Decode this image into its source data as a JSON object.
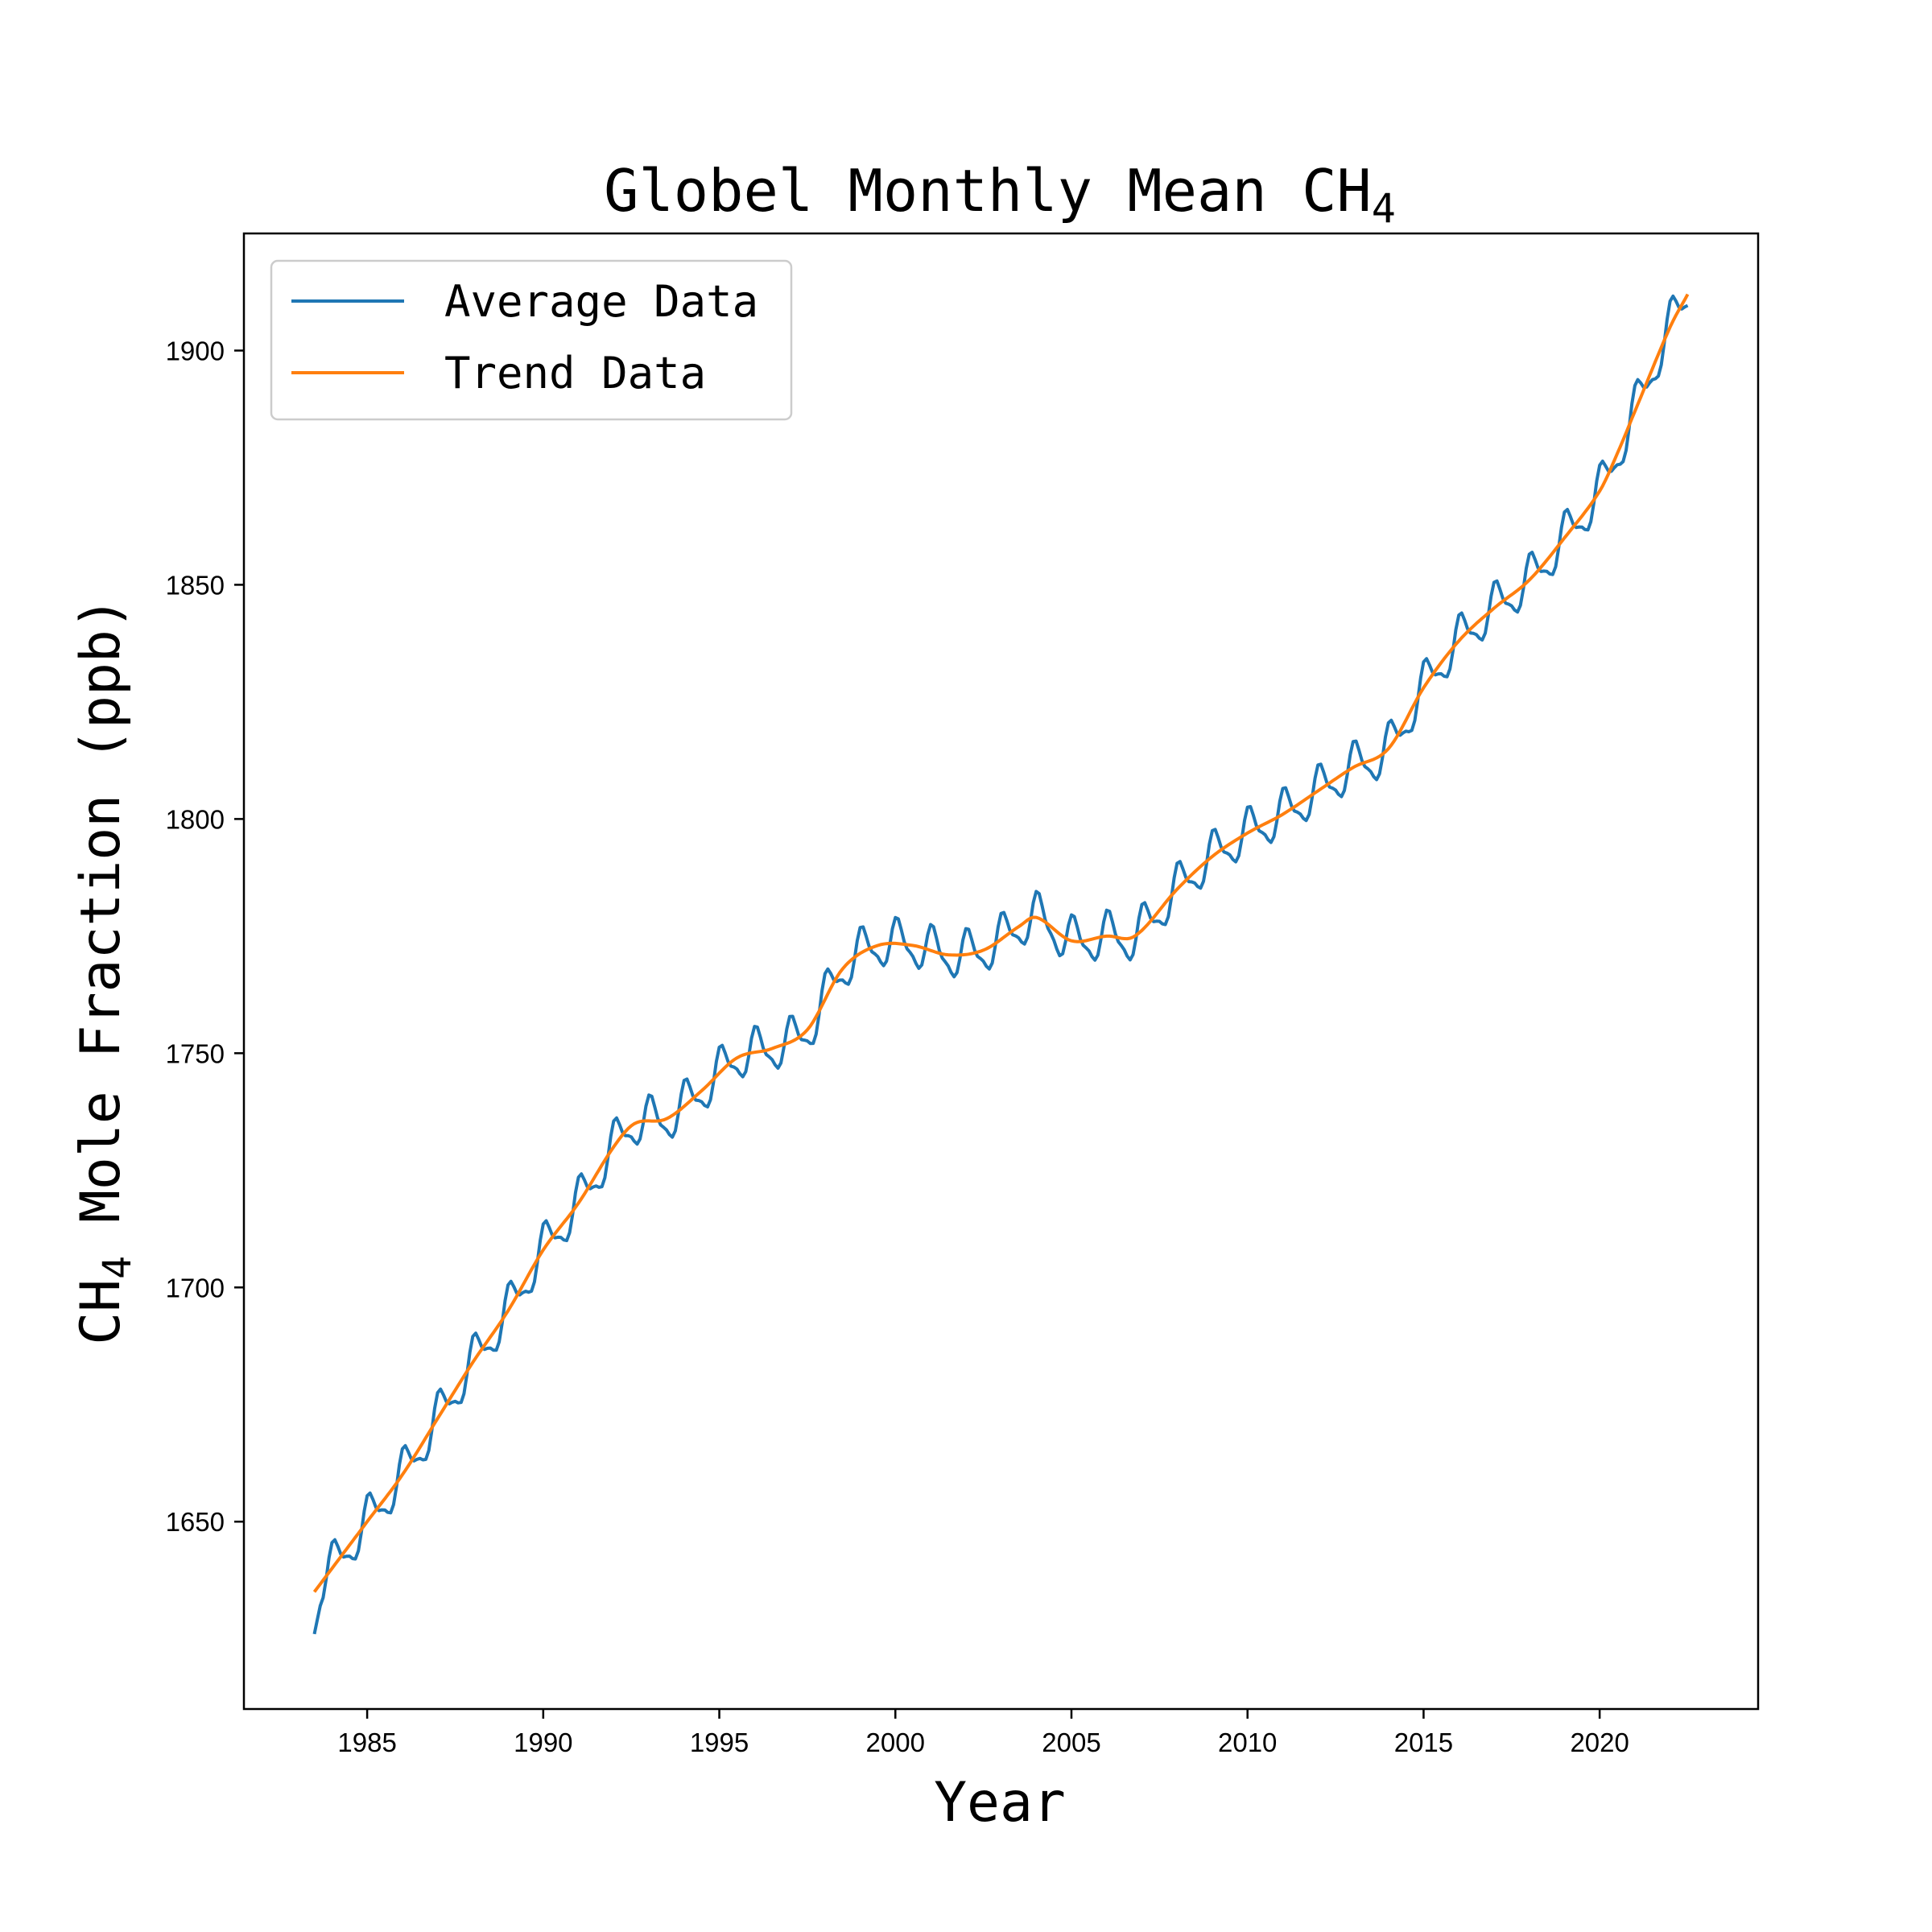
{
  "chart_data": {
    "type": "line",
    "title": "Globel Monthly Mean CH",
    "title_subscript": "4",
    "xlabel": "Year",
    "ylabel": "CH",
    "ylabel_subscript": "4",
    "ylabel_suffix": " Mole Fraction (ppb)",
    "xlim": [
      1981.5,
      2024.5
    ],
    "ylim": [
      1610,
      1925
    ],
    "x_ticks": [
      1985,
      1990,
      1995,
      2000,
      2005,
      2010,
      2015,
      2020
    ],
    "x_tick_labels": [
      "1985",
      "1990",
      "1995",
      "2000",
      "2005",
      "2010",
      "2015",
      "2020"
    ],
    "y_ticks": [
      1650,
      1700,
      1750,
      1800,
      1850,
      1900
    ],
    "y_tick_labels": [
      "1650",
      "1700",
      "1750",
      "1800",
      "1850",
      "1900"
    ],
    "grid": false,
    "legend_position": "top-left",
    "trend_keypoints": [
      [
        1983.5,
        1635
      ],
      [
        1985,
        1650
      ],
      [
        1986,
        1660
      ],
      [
        1987,
        1672
      ],
      [
        1988,
        1684
      ],
      [
        1989,
        1695
      ],
      [
        1990,
        1708
      ],
      [
        1991,
        1718
      ],
      [
        1992,
        1730
      ],
      [
        1992.6,
        1735
      ],
      [
        1993.5,
        1736
      ],
      [
        1994.5,
        1742
      ],
      [
        1995.5,
        1749
      ],
      [
        1996.5,
        1751
      ],
      [
        1997.5,
        1755
      ],
      [
        1998.5,
        1768
      ],
      [
        1999.5,
        1773
      ],
      [
        2000.5,
        1773
      ],
      [
        2001.5,
        1771
      ],
      [
        2002.5,
        1772
      ],
      [
        2003.5,
        1777
      ],
      [
        2004,
        1779
      ],
      [
        2005,
        1774
      ],
      [
        2006,
        1775
      ],
      [
        2006.8,
        1775
      ],
      [
        2008,
        1785
      ],
      [
        2009,
        1792
      ],
      [
        2010,
        1797
      ],
      [
        2011,
        1801
      ],
      [
        2012,
        1806
      ],
      [
        2013,
        1811
      ],
      [
        2014,
        1815
      ],
      [
        2015,
        1828
      ],
      [
        2016,
        1838
      ],
      [
        2017,
        1845
      ],
      [
        2018,
        1851
      ],
      [
        2019,
        1860
      ],
      [
        2020,
        1870
      ],
      [
        2020.5,
        1878
      ],
      [
        2021,
        1887
      ],
      [
        2022,
        1905
      ],
      [
        2022.5,
        1912
      ]
    ],
    "seasonal_amplitude": 4.5,
    "series": [
      {
        "name": "Average Data",
        "color": "#1f77b4"
      },
      {
        "name": "Trend Data",
        "color": "#ff7f0e"
      }
    ]
  }
}
